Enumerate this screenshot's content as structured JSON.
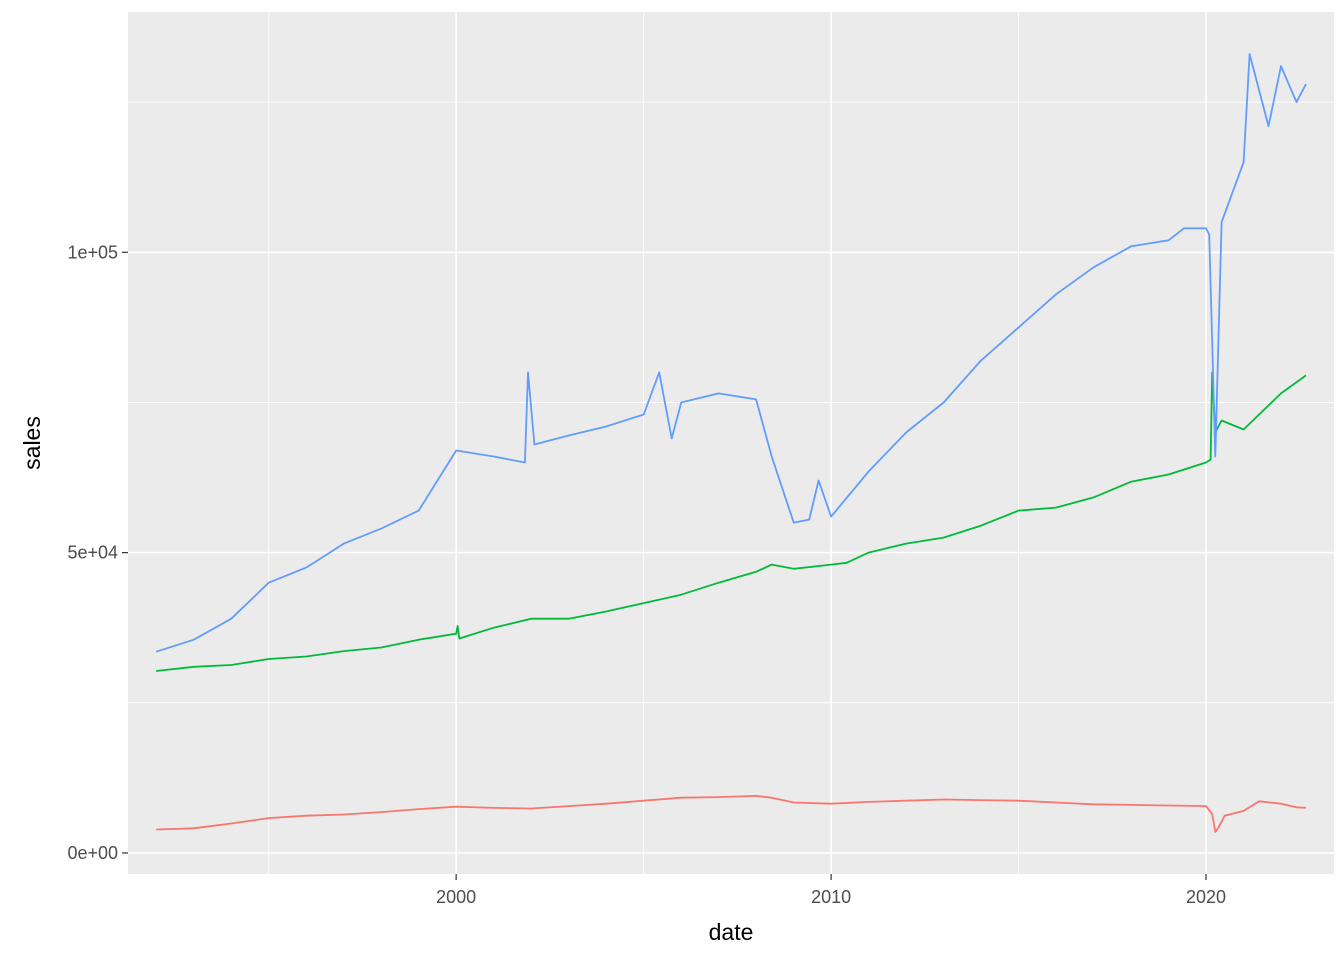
{
  "chart_data": {
    "type": "line",
    "title": "",
    "xlabel": "date",
    "ylabel": "sales",
    "xlim": [
      "1991-04-01",
      "2023-06-01"
    ],
    "ylim": [
      -3500,
      140000
    ],
    "x_ticks": [
      {
        "date": "2000-01-01",
        "label": "2000"
      },
      {
        "date": "2010-01-01",
        "label": "2010"
      },
      {
        "date": "2020-01-01",
        "label": "2020"
      }
    ],
    "x_minor_ticks": [
      "1995-01-01",
      "2005-01-01",
      "2015-01-01"
    ],
    "y_ticks": [
      {
        "value": 0,
        "label": "0e+00"
      },
      {
        "value": 50000,
        "label": "5e+04"
      },
      {
        "value": 100000,
        "label": "1e+05"
      }
    ],
    "y_minor_ticks": [
      25000,
      75000,
      125000
    ],
    "grid": true,
    "legend": "none",
    "background": "#ebebeb",
    "series": [
      {
        "color": "#f8766d",
        "points": [
          [
            "1992-01-01",
            3900
          ],
          [
            "1993-01-01",
            4100
          ],
          [
            "1994-01-01",
            4900
          ],
          [
            "1995-01-01",
            5800
          ],
          [
            "1996-01-01",
            6200
          ],
          [
            "1997-01-01",
            6400
          ],
          [
            "1998-01-01",
            6800
          ],
          [
            "1999-01-01",
            7300
          ],
          [
            "2000-01-01",
            7700
          ],
          [
            "2001-01-01",
            7500
          ],
          [
            "2002-01-01",
            7400
          ],
          [
            "2003-01-01",
            7800
          ],
          [
            "2004-01-01",
            8200
          ],
          [
            "2005-01-01",
            8700
          ],
          [
            "2006-01-01",
            9200
          ],
          [
            "2007-01-01",
            9300
          ],
          [
            "2008-01-01",
            9500
          ],
          [
            "2008-06-01",
            9200
          ],
          [
            "2009-01-01",
            8400
          ],
          [
            "2010-01-01",
            8200
          ],
          [
            "2011-01-01",
            8500
          ],
          [
            "2012-01-01",
            8700
          ],
          [
            "2013-01-01",
            8900
          ],
          [
            "2014-01-01",
            8800
          ],
          [
            "2015-01-01",
            8700
          ],
          [
            "2016-01-01",
            8400
          ],
          [
            "2017-01-01",
            8100
          ],
          [
            "2018-01-01",
            8000
          ],
          [
            "2019-01-01",
            7900
          ],
          [
            "2020-01-01",
            7800
          ],
          [
            "2020-03-01",
            6500
          ],
          [
            "2020-04-01",
            3500
          ],
          [
            "2020-05-01",
            4200
          ],
          [
            "2020-07-01",
            6200
          ],
          [
            "2021-01-01",
            7000
          ],
          [
            "2021-06-01",
            8600
          ],
          [
            "2022-01-01",
            8200
          ],
          [
            "2022-06-01",
            7600
          ],
          [
            "2022-09-01",
            7500
          ]
        ]
      },
      {
        "color": "#00ba38",
        "points": [
          [
            "1992-01-01",
            30300
          ],
          [
            "1993-01-01",
            31000
          ],
          [
            "1994-01-01",
            31300
          ],
          [
            "1995-01-01",
            32300
          ],
          [
            "1996-01-01",
            32700
          ],
          [
            "1997-01-01",
            33600
          ],
          [
            "1998-01-01",
            34200
          ],
          [
            "1999-01-01",
            35500
          ],
          [
            "2000-01-01",
            36500
          ],
          [
            "2000-01-15",
            37800
          ],
          [
            "2000-02-01",
            35700
          ],
          [
            "2001-01-01",
            37500
          ],
          [
            "2002-01-01",
            39000
          ],
          [
            "2003-01-01",
            39000
          ],
          [
            "2004-01-01",
            40200
          ],
          [
            "2005-01-01",
            41600
          ],
          [
            "2006-01-01",
            43000
          ],
          [
            "2007-01-01",
            45000
          ],
          [
            "2008-01-01",
            46800
          ],
          [
            "2008-06-01",
            48000
          ],
          [
            "2009-01-01",
            47300
          ],
          [
            "2010-01-01",
            48000
          ],
          [
            "2010-06-01",
            48300
          ],
          [
            "2011-01-01",
            50000
          ],
          [
            "2012-01-01",
            51500
          ],
          [
            "2013-01-01",
            52500
          ],
          [
            "2014-01-01",
            54500
          ],
          [
            "2015-01-01",
            57000
          ],
          [
            "2016-01-01",
            57500
          ],
          [
            "2017-01-01",
            59200
          ],
          [
            "2018-01-01",
            61800
          ],
          [
            "2019-01-01",
            63000
          ],
          [
            "2020-01-01",
            65000
          ],
          [
            "2020-02-15",
            65500
          ],
          [
            "2020-03-01",
            80000
          ],
          [
            "2020-04-01",
            70000
          ],
          [
            "2020-06-01",
            72000
          ],
          [
            "2021-01-01",
            70500
          ],
          [
            "2022-01-01",
            76500
          ],
          [
            "2022-09-01",
            79500
          ]
        ]
      },
      {
        "color": "#619cff",
        "points": [
          [
            "1992-01-01",
            33500
          ],
          [
            "1993-01-01",
            35500
          ],
          [
            "1994-01-01",
            39000
          ],
          [
            "1995-01-01",
            45000
          ],
          [
            "1996-01-01",
            47500
          ],
          [
            "1997-01-01",
            51500
          ],
          [
            "1998-01-01",
            54000
          ],
          [
            "1999-01-01",
            57000
          ],
          [
            "2000-01-01",
            67000
          ],
          [
            "2001-01-01",
            66000
          ],
          [
            "2001-11-01",
            65000
          ],
          [
            "2001-12-01",
            80000
          ],
          [
            "2002-02-01",
            68000
          ],
          [
            "2003-01-01",
            69500
          ],
          [
            "2004-01-01",
            71000
          ],
          [
            "2005-01-01",
            73000
          ],
          [
            "2005-06-01",
            80000
          ],
          [
            "2005-10-01",
            69000
          ],
          [
            "2006-01-01",
            75000
          ],
          [
            "2007-01-01",
            76500
          ],
          [
            "2008-01-01",
            75500
          ],
          [
            "2008-06-01",
            66000
          ],
          [
            "2009-01-01",
            55000
          ],
          [
            "2009-06-01",
            55500
          ],
          [
            "2009-09-01",
            62000
          ],
          [
            "2010-01-01",
            56000
          ],
          [
            "2011-01-01",
            63500
          ],
          [
            "2012-01-01",
            70000
          ],
          [
            "2013-01-01",
            75000
          ],
          [
            "2014-01-01",
            82000
          ],
          [
            "2015-01-01",
            87500
          ],
          [
            "2016-01-01",
            93000
          ],
          [
            "2017-01-01",
            97500
          ],
          [
            "2018-01-01",
            101000
          ],
          [
            "2019-01-01",
            102000
          ],
          [
            "2019-06-01",
            104000
          ],
          [
            "2020-01-01",
            104000
          ],
          [
            "2020-02-01",
            103000
          ],
          [
            "2020-03-01",
            85000
          ],
          [
            "2020-04-01",
            66000
          ],
          [
            "2020-06-01",
            105000
          ],
          [
            "2021-01-01",
            115000
          ],
          [
            "2021-03-01",
            133000
          ],
          [
            "2021-09-01",
            121000
          ],
          [
            "2022-01-01",
            131000
          ],
          [
            "2022-06-01",
            125000
          ],
          [
            "2022-09-01",
            128000
          ]
        ]
      }
    ]
  }
}
